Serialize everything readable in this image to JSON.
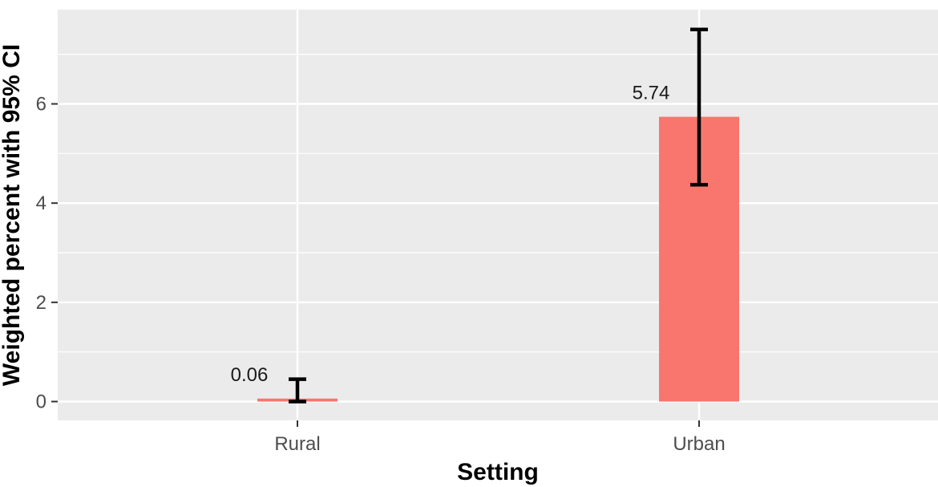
{
  "chart_data": {
    "type": "bar",
    "categories": [
      "Rural",
      "Urban"
    ],
    "values": [
      0.06,
      5.74
    ],
    "error_bars": [
      {
        "category": "Rural",
        "lower": 0.0,
        "upper": 0.45
      },
      {
        "category": "Urban",
        "lower": 4.37,
        "upper": 7.5
      }
    ],
    "data_labels": [
      "0.06",
      "5.74"
    ],
    "xlabel": "Setting",
    "ylabel": "Weighted percent with 95% CI",
    "yticks": [
      "0",
      "2",
      "4",
      "6"
    ],
    "ylim": [
      -0.38,
      7.9
    ],
    "grid": true,
    "legend": "none",
    "colors": {
      "bar": "#F8766D",
      "panel": "#EBEBEB",
      "grid": "#FFFFFF",
      "errorbar": "#000000"
    }
  }
}
